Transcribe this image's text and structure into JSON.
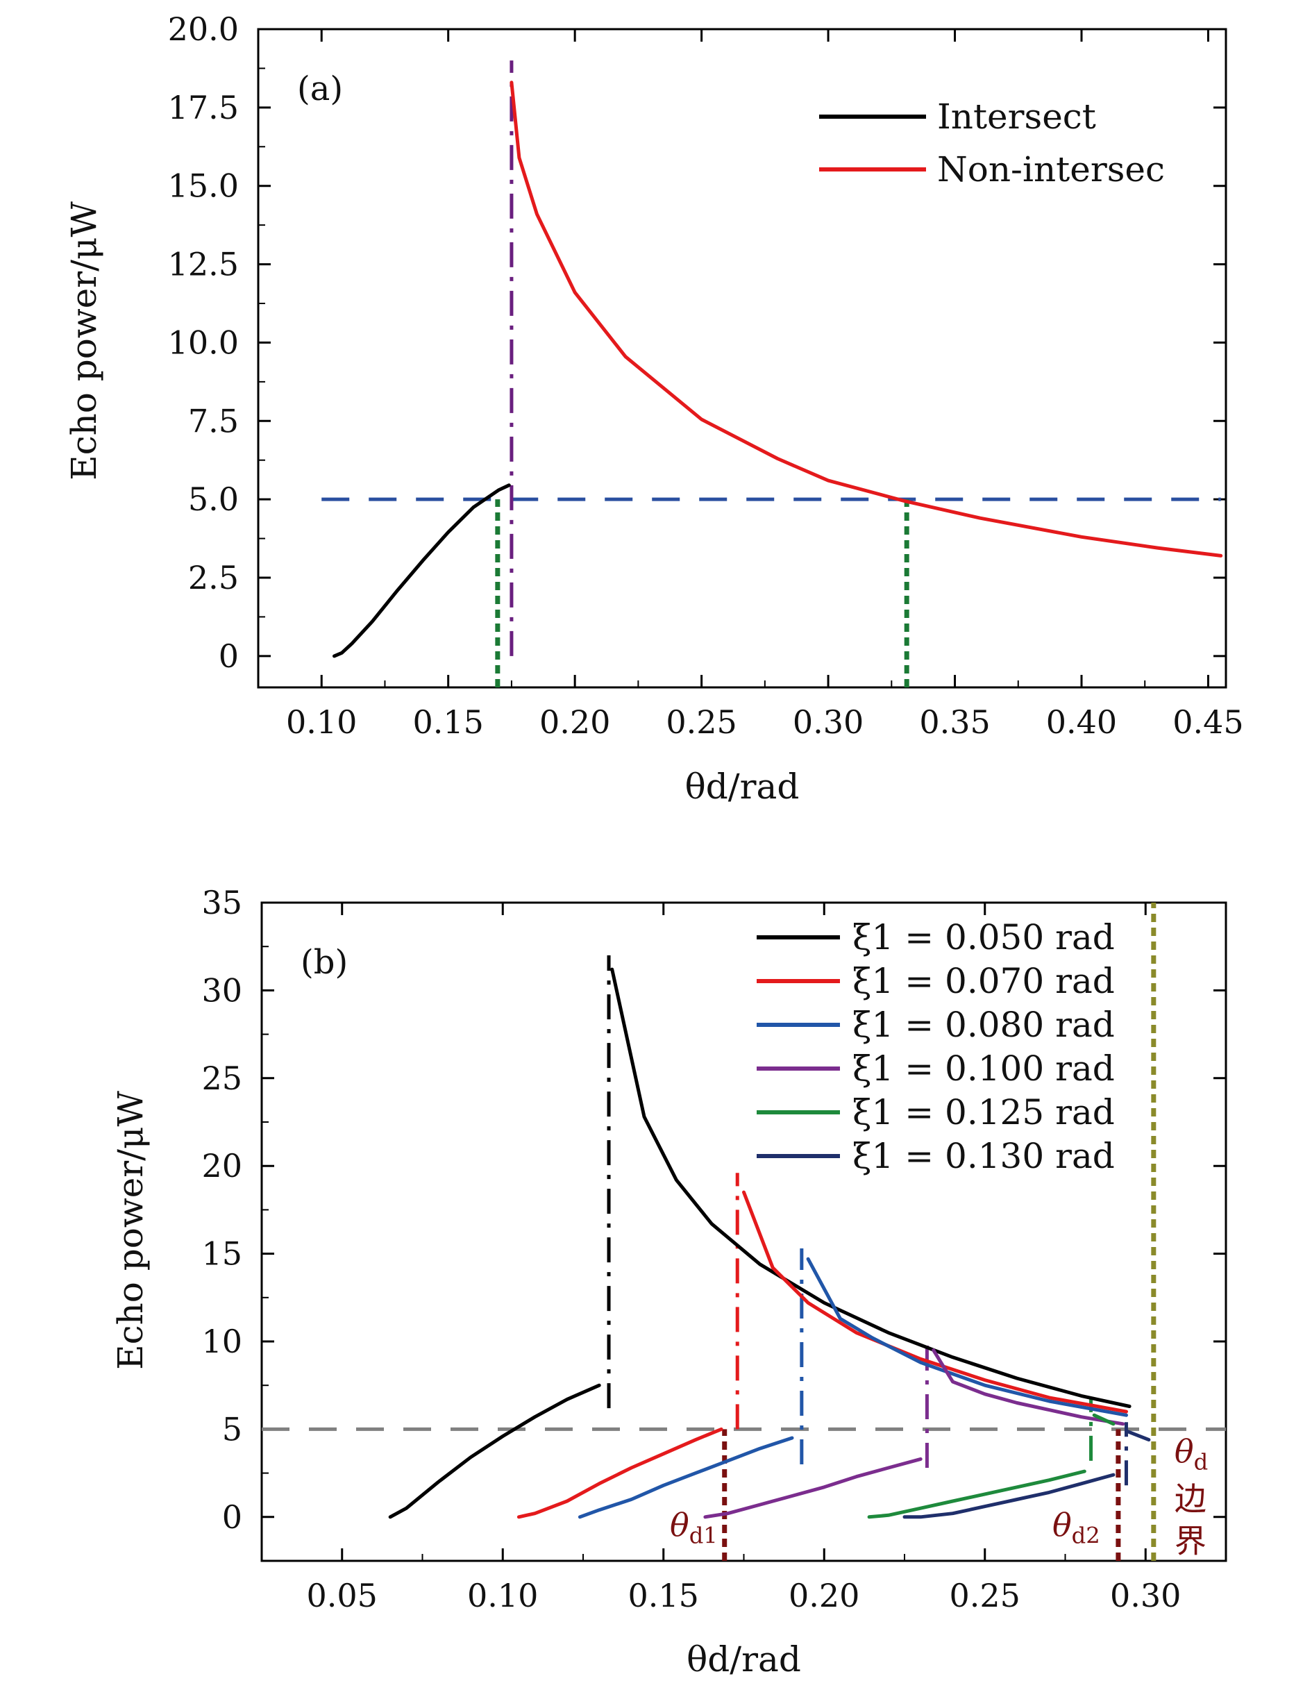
{
  "chart_data": [
    {
      "type": "line",
      "panel_label": "(a)",
      "xlabel": "θd/rad",
      "ylabel": "Echo power/μW",
      "xlim": [
        0.075,
        0.457
      ],
      "ylim": [
        -1.0,
        20.0
      ],
      "xticks": [
        0.1,
        0.15,
        0.2,
        0.25,
        0.3,
        0.35,
        0.4,
        0.45
      ],
      "xtick_labels": [
        "0.10",
        "0.15",
        "0.20",
        "0.25",
        "0.30",
        "0.35",
        "0.40",
        "0.45"
      ],
      "yticks": [
        0,
        2.5,
        5.0,
        7.5,
        10.0,
        12.5,
        15.0,
        17.5,
        20.0
      ],
      "ytick_labels": [
        "0",
        "2.5",
        "5.0",
        "7.5",
        "10.0",
        "12.5",
        "15.0",
        "17.5",
        "20.0"
      ],
      "legend_position": "top-right",
      "series": [
        {
          "name": "Intersect",
          "color": "#000000",
          "style": "solid",
          "x": [
            0.105,
            0.108,
            0.112,
            0.12,
            0.13,
            0.14,
            0.15,
            0.16,
            0.17,
            0.174
          ],
          "y": [
            0.0,
            0.1,
            0.4,
            1.1,
            2.1,
            3.05,
            3.95,
            4.75,
            5.3,
            5.45
          ]
        },
        {
          "name": "Non-intersec",
          "color": "#e41a1c",
          "style": "solid",
          "x": [
            0.175,
            0.178,
            0.185,
            0.2,
            0.22,
            0.25,
            0.28,
            0.3,
            0.33,
            0.36,
            0.4,
            0.43,
            0.455
          ],
          "y": [
            18.3,
            15.9,
            14.1,
            11.6,
            9.55,
            7.55,
            6.3,
            5.6,
            4.95,
            4.4,
            3.8,
            3.45,
            3.2
          ]
        }
      ],
      "reference_lines": [
        {
          "orientation": "horizontal",
          "y": 5.0,
          "x_range": [
            0.1,
            0.455
          ],
          "color": "#2a4fa0",
          "style": "dashed"
        },
        {
          "orientation": "vertical",
          "x": 0.175,
          "y_range": [
            0.0,
            19.0
          ],
          "color": "#6a1f7f",
          "style": "dashdot"
        },
        {
          "orientation": "vertical",
          "x": 0.1695,
          "y_range": [
            -1.0,
            5.0
          ],
          "color": "#1b7a35",
          "style": "dotted"
        },
        {
          "orientation": "vertical",
          "x": 0.331,
          "y_range": [
            -1.0,
            5.0
          ],
          "color": "#1b7a35",
          "style": "dotted"
        }
      ]
    },
    {
      "type": "line",
      "panel_label": "(b)",
      "xlabel": "θd/rad",
      "ylabel": "Echo power/μW",
      "xlim": [
        0.025,
        0.325
      ],
      "ylim": [
        -2.5,
        35.0
      ],
      "xticks": [
        0.05,
        0.1,
        0.15,
        0.2,
        0.25,
        0.3
      ],
      "xtick_labels": [
        "0.05",
        "0.10",
        "0.15",
        "0.20",
        "0.25",
        "0.30"
      ],
      "yticks": [
        0,
        5,
        10,
        15,
        20,
        25,
        30,
        35
      ],
      "ytick_labels": [
        "0",
        "5",
        "10",
        "15",
        "20",
        "25",
        "30",
        "35"
      ],
      "legend_position": "top-right",
      "series": [
        {
          "name": "ξ1 = 0.050 rad",
          "color": "#000000",
          "style": "solid",
          "segments": [
            {
              "x": [
                0.065,
                0.07,
                0.08,
                0.09,
                0.1,
                0.11,
                0.12,
                0.13
              ],
              "y": [
                0.0,
                0.5,
                2.0,
                3.4,
                4.6,
                5.7,
                6.7,
                7.5
              ]
            },
            {
              "x": [
                0.134,
                0.144,
                0.154,
                0.165,
                0.18,
                0.2,
                0.22,
                0.24,
                0.26,
                0.28,
                0.295
              ],
              "y": [
                31.2,
                22.8,
                19.2,
                16.7,
                14.4,
                12.2,
                10.5,
                9.1,
                7.9,
                6.9,
                6.3
              ]
            }
          ]
        },
        {
          "name": "ξ1 = 0.070 rad",
          "color": "#e41a1c",
          "style": "solid",
          "segments": [
            {
              "x": [
                0.105,
                0.11,
                0.12,
                0.13,
                0.14,
                0.15,
                0.16,
                0.168
              ],
              "y": [
                0.0,
                0.2,
                0.9,
                1.9,
                2.8,
                3.6,
                4.4,
                5.0
              ]
            },
            {
              "x": [
                0.175,
                0.184,
                0.195,
                0.21,
                0.23,
                0.25,
                0.27,
                0.294
              ],
              "y": [
                18.5,
                14.2,
                12.2,
                10.5,
                9.0,
                7.8,
                6.8,
                6.0
              ]
            }
          ]
        },
        {
          "name": "ξ1 = 0.080 rad",
          "color": "#2156a8",
          "style": "solid",
          "segments": [
            {
              "x": [
                0.124,
                0.13,
                0.14,
                0.15,
                0.16,
                0.17,
                0.18,
                0.19
              ],
              "y": [
                0.0,
                0.4,
                1.0,
                1.8,
                2.5,
                3.2,
                3.9,
                4.5
              ]
            },
            {
              "x": [
                0.195,
                0.205,
                0.215,
                0.23,
                0.25,
                0.27,
                0.294
              ],
              "y": [
                14.7,
                11.3,
                10.2,
                8.8,
                7.5,
                6.6,
                5.8
              ]
            }
          ]
        },
        {
          "name": "ξ1 = 0.100 rad",
          "color": "#7b2d8e",
          "style": "solid",
          "segments": [
            {
              "x": [
                0.163,
                0.17,
                0.18,
                0.19,
                0.2,
                0.21,
                0.22,
                0.23
              ],
              "y": [
                0.0,
                0.2,
                0.7,
                1.2,
                1.7,
                2.3,
                2.8,
                3.3
              ]
            },
            {
              "x": [
                0.234,
                0.24,
                0.25,
                0.26,
                0.27,
                0.28,
                0.293
              ],
              "y": [
                9.5,
                7.7,
                7.0,
                6.5,
                6.1,
                5.7,
                5.3
              ]
            }
          ]
        },
        {
          "name": "ξ1 = 0.125 rad",
          "color": "#1e8a3c",
          "style": "solid",
          "segments": [
            {
              "x": [
                0.214,
                0.22,
                0.23,
                0.24,
                0.25,
                0.26,
                0.27,
                0.281
              ],
              "y": [
                0.0,
                0.1,
                0.5,
                0.9,
                1.3,
                1.7,
                2.1,
                2.6
              ]
            },
            {
              "x": [
                0.284,
                0.29
              ],
              "y": [
                5.8,
                5.3
              ]
            }
          ]
        },
        {
          "name": "ξ1 = 0.130 rad",
          "color": "#1f2f6b",
          "style": "solid",
          "segments": [
            {
              "x": [
                0.225,
                0.23,
                0.24,
                0.25,
                0.26,
                0.27,
                0.28,
                0.29
              ],
              "y": [
                0.0,
                0.0,
                0.2,
                0.6,
                1.0,
                1.4,
                1.9,
                2.4
              ]
            },
            {
              "x": [
                0.294,
                0.301
              ],
              "y": [
                4.9,
                4.4
              ]
            }
          ]
        }
      ],
      "reference_lines": [
        {
          "orientation": "horizontal",
          "y": 5.0,
          "x_range": [
            0.025,
            0.325
          ],
          "color": "#808080",
          "style": "dashed"
        },
        {
          "orientation": "vertical",
          "x": 0.133,
          "y_range": [
            6.2,
            32.0
          ],
          "color": "#000000",
          "style": "dashdot"
        },
        {
          "orientation": "vertical",
          "x": 0.173,
          "y_range": [
            5.0,
            19.6
          ],
          "color": "#e41a1c",
          "style": "dashdot"
        },
        {
          "orientation": "vertical",
          "x": 0.193,
          "y_range": [
            3.0,
            15.3
          ],
          "color": "#2156a8",
          "style": "dashdot"
        },
        {
          "orientation": "vertical",
          "x": 0.232,
          "y_range": [
            2.8,
            9.8
          ],
          "color": "#7b2d8e",
          "style": "dashdot"
        },
        {
          "orientation": "vertical",
          "x": 0.283,
          "y_range": [
            3.2,
            6.8
          ],
          "color": "#1e8a3c",
          "style": "dashdot"
        },
        {
          "orientation": "vertical",
          "x": 0.294,
          "y_range": [
            1.8,
            5.4
          ],
          "color": "#1f2f6b",
          "style": "dashdot"
        },
        {
          "orientation": "vertical",
          "x": 0.169,
          "y_range": [
            -2.5,
            5.0
          ],
          "color": "#7a1010",
          "style": "dotted"
        },
        {
          "orientation": "vertical",
          "x": 0.2915,
          "y_range": [
            -2.5,
            5.0
          ],
          "color": "#7a1010",
          "style": "dotted"
        },
        {
          "orientation": "vertical",
          "x": 0.3025,
          "y_range": [
            -2.5,
            35.0
          ],
          "color": "#8a8a2a",
          "style": "dotted"
        }
      ],
      "annotations": [
        {
          "text_main": "θ",
          "text_sub": "d1",
          "x": 0.152,
          "y": -1.1
        },
        {
          "text_main": "θ",
          "text_sub": "d2",
          "x": 0.271,
          "y": -1.1
        },
        {
          "text_main": "θ",
          "text_sub": "d",
          "x": 0.309,
          "y": 3.1
        },
        {
          "text": "边",
          "x": 0.309,
          "y": 0.4
        },
        {
          "text": "界",
          "x": 0.309,
          "y": -2.0
        }
      ]
    }
  ]
}
